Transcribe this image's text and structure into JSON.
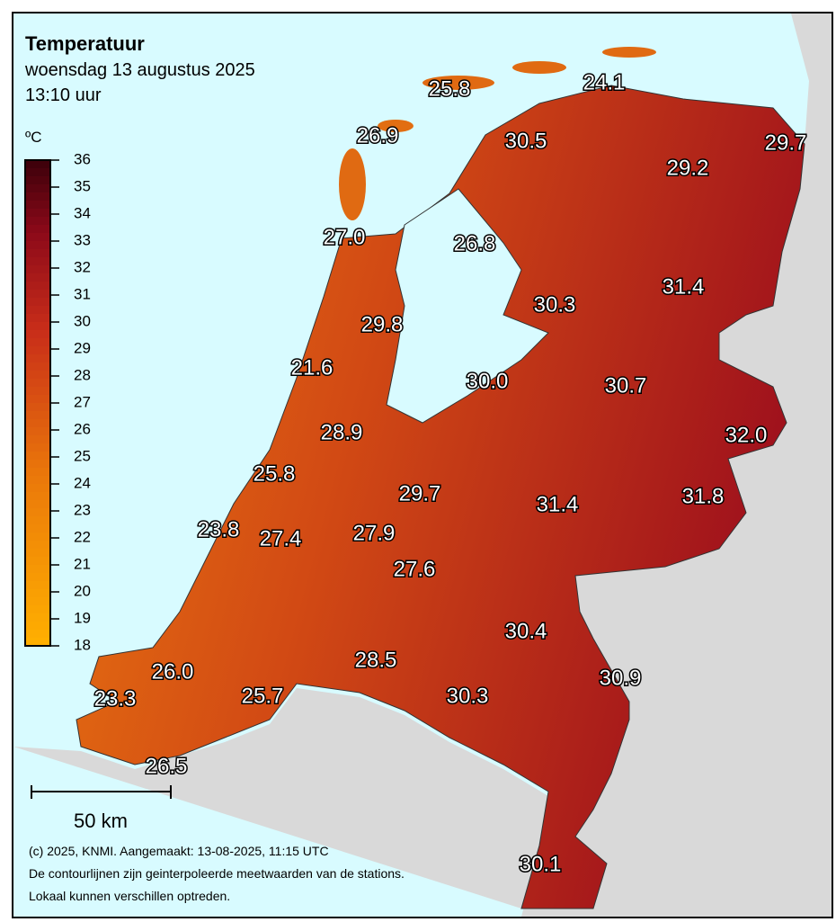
{
  "header": {
    "title": "Temperatuur",
    "subtitle": "woensdag 13 augustus 2025",
    "time": "13:10 uur"
  },
  "legend": {
    "unit": "ºC",
    "range": [
      18,
      36
    ],
    "ticks": [
      18,
      19,
      20,
      21,
      22,
      23,
      24,
      25,
      26,
      27,
      28,
      29,
      30,
      31,
      32,
      33,
      34,
      35,
      36
    ]
  },
  "stations": [
    "25.8",
    "24.1",
    "26.9",
    "30.5",
    "29.7",
    "29.2",
    "27.0",
    "26.8",
    "31.4",
    "30.3",
    "29.8",
    "21.6",
    "30.0",
    "30.7",
    "28.9",
    "32.0",
    "25.8",
    "29.7",
    "31.4",
    "31.8",
    "23.8",
    "27.4",
    "27.9",
    "27.6",
    "30.4",
    "28.5",
    "26.0",
    "30.9",
    "23.3",
    "25.7",
    "30.3",
    "26.5",
    "30.1"
  ],
  "scale_bar": "50 km",
  "footer": [
    "(c) 2025, KNMI. Aangemaakt: 13-08-2025, 11:15 UTC",
    "De contourlijnen zijn geinterpoleerde meetwaarden van de stations.",
    "Lokaal kunnen verschillen optreden."
  ]
}
